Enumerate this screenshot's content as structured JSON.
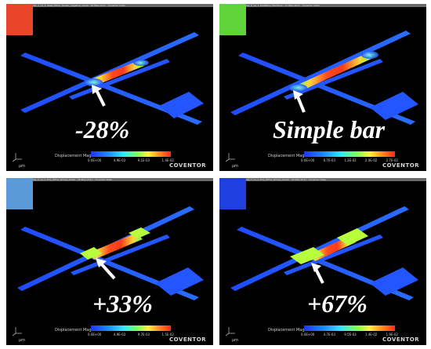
{
  "panels": [
    {
      "title": "lap_1_ve_1_deep_fillms_Tempo_negative_small · 16 May 2011 · Coventor Data",
      "swatch_color": "#e8452a",
      "caption": "-28%",
      "scale_label": "Displacement Mag.",
      "ticks": [
        "0.0E+00",
        "4.9E-03",
        "9.1E-03",
        "1.4E-02"
      ],
      "brand": "COVENTOR",
      "axis_unit": "µm"
    },
    {
      "title": "lap_6_ve_1_Expfillms_Filmfilms · 17 May 2011 · Coventor Data",
      "swatch_color": "#5fd43a",
      "caption": "Simple bar",
      "scale_label": "Displacement Mag.",
      "ticks": [
        "0.0E+00",
        "6.7E-03",
        "1.3E-02",
        "2.0E-02",
        "2.7E-02"
      ],
      "brand": "COVENTOR",
      "axis_unit": "µm"
    },
    {
      "title": "lap_6_ve_1_Exp_fillms_Tempo_small · 16 May 2011 · Coventor Data",
      "swatch_color": "#5a9ad8",
      "caption": "+33%",
      "scale_label": "Displacement Mag.",
      "ticks": [
        "0.0E+00",
        "4.9E-03",
        "9.7E-03",
        "1.5E-02"
      ],
      "brand": "COVENTOR",
      "axis_unit": "µm"
    },
    {
      "title": "lap_5_ve_1_Exp_fillms_Tempo_Gpale · 16 May 2011 · Coventor Data",
      "swatch_color": "#1f3fe0",
      "caption": "+67%",
      "scale_label": "Displacement Mag.",
      "ticks": [
        "0.0E+00",
        "4.7E-03",
        "9.5E-03",
        "1.4E-02",
        "1.9E-02"
      ],
      "brand": "COVENTOR",
      "axis_unit": "µm"
    }
  ]
}
